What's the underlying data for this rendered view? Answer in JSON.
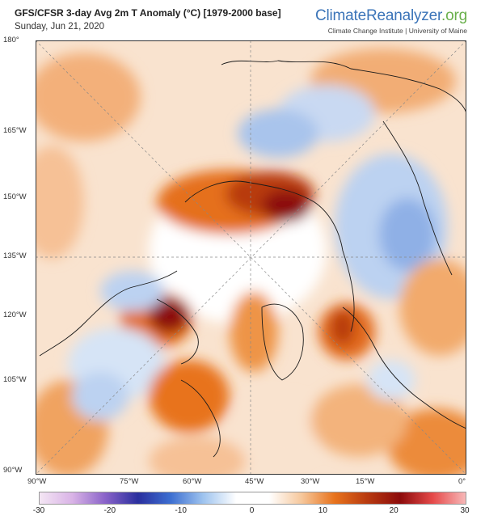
{
  "header": {
    "title": "GFS/CFSR 3-day Avg 2m T Anomaly (°C) [1979-2000 base]",
    "date": "Sunday, Jun 21, 2020"
  },
  "brand": {
    "part1": "Climate",
    "part2": "Reanalyzer",
    "part3": ".org",
    "institute": "Climate Change Institute | University of Maine"
  },
  "map": {
    "projection": "polar stereographic (north)",
    "left_labels": [
      "180°",
      "165°W",
      "150°W",
      "135°W",
      "120°W",
      "105°W",
      "90°W"
    ],
    "bottom_labels": [
      "90°W",
      "75°W",
      "60°W",
      "45°W",
      "30°W",
      "15°W",
      "0°"
    ]
  },
  "colorbar": {
    "min": -30,
    "max": 30,
    "ticks": [
      "-30",
      "-20",
      "-10",
      "0",
      "10",
      "20",
      "30"
    ],
    "colors": [
      "#f4e6f4",
      "#d9b3e6",
      "#8a63c9",
      "#2a2f9e",
      "#3d6fd1",
      "#9fc4ef",
      "#ffffff",
      "#ffffff",
      "#f6c79b",
      "#e8731c",
      "#b83a10",
      "#8c0b0b",
      "#e64a4a",
      "#f7b8b8"
    ]
  }
}
